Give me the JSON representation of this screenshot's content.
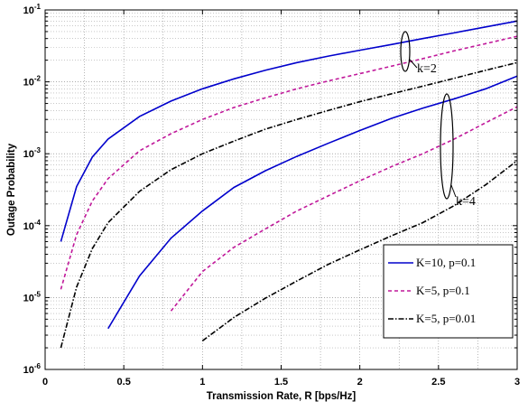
{
  "chart_data": {
    "type": "line",
    "title": "",
    "xlabel": "Transmission Rate, R [bps/Hz]",
    "ylabel": "Outage Probability",
    "xlim": [
      0,
      3
    ],
    "ylim": [
      1e-06,
      0.1
    ],
    "yscale": "log",
    "grid": "on (major and minor, dotted)",
    "legend_position": "bottom-right",
    "x_ticks": [
      "0",
      "0.5",
      "1",
      "1.5",
      "2",
      "2.5",
      "3"
    ],
    "y_ticks": [
      {
        "base": "10",
        "exp": "-6",
        "value": 1e-06
      },
      {
        "base": "10",
        "exp": "-5",
        "value": 1e-05
      },
      {
        "base": "10",
        "exp": "-4",
        "value": 0.0001
      },
      {
        "base": "10",
        "exp": "-3",
        "value": 0.001
      },
      {
        "base": "10",
        "exp": "-2",
        "value": 0.01
      },
      {
        "base": "10",
        "exp": "-1",
        "value": 0.1
      }
    ],
    "x": [
      0.1,
      0.2,
      0.3,
      0.4,
      0.6,
      0.8,
      1.0,
      1.2,
      1.4,
      1.6,
      1.8,
      2.0,
      2.2,
      2.4,
      2.6,
      2.8,
      3.0
    ],
    "series": [
      {
        "name": "K=10, p=0.1",
        "group": "k=2",
        "color": "#0000cc",
        "dash": "solid",
        "values": [
          6e-05,
          0.00035,
          0.0009,
          0.0016,
          0.0033,
          0.0054,
          0.008,
          0.011,
          0.0145,
          0.0185,
          0.0228,
          0.0275,
          0.033,
          0.04,
          0.048,
          0.058,
          0.07
        ]
      },
      {
        "name": "K=5, p=0.1",
        "group": "k=2",
        "color": "#c0189a",
        "dash": "dashed",
        "values": [
          1.3e-05,
          7.5e-05,
          0.00022,
          0.00045,
          0.0011,
          0.0019,
          0.003,
          0.0044,
          0.006,
          0.008,
          0.0103,
          0.013,
          0.0165,
          0.021,
          0.027,
          0.034,
          0.043
        ]
      },
      {
        "name": "K=5, p=0.01",
        "group": "k=2",
        "color": "#000000",
        "dash": "dashdot",
        "values": [
          2e-06,
          1.4e-05,
          4.8e-05,
          0.00011,
          0.0003,
          0.0006,
          0.001,
          0.0015,
          0.0022,
          0.003,
          0.004,
          0.0053,
          0.0068,
          0.0087,
          0.0112,
          0.0145,
          0.0185
        ]
      },
      {
        "name": "K=10, p=0.1",
        "group": "k=4",
        "color": "#0000cc",
        "dash": "solid",
        "values": [
          null,
          null,
          9e-07,
          3.7e-06,
          2e-05,
          6.7e-05,
          0.00016,
          0.00034,
          0.00058,
          0.00092,
          0.0014,
          0.0021,
          0.0031,
          0.0043,
          0.0058,
          0.008,
          0.012
        ]
      },
      {
        "name": "K=5, p=0.1",
        "group": "k=4",
        "color": "#c0189a",
        "dash": "dashed",
        "values": [
          null,
          null,
          null,
          null,
          null,
          6.5e-06,
          2.3e-05,
          5e-05,
          9e-05,
          0.00016,
          0.00026,
          0.00042,
          0.00066,
          0.001,
          0.0016,
          0.0027,
          0.0045
        ]
      },
      {
        "name": "K=5, p=0.01",
        "group": "k=4",
        "color": "#000000",
        "dash": "dashdot",
        "values": [
          null,
          null,
          null,
          null,
          null,
          null,
          2.5e-06,
          5.3e-06,
          9.8e-06,
          1.7e-05,
          2.9e-05,
          4.6e-05,
          7.2e-05,
          0.00011,
          0.00019,
          0.00037,
          0.0008
        ]
      }
    ],
    "annotations": [
      "k=2",
      "k=4"
    ],
    "legend": [
      "K=10, p=0.1",
      "K=5, p=0.1",
      "K=5, p=0.01"
    ]
  }
}
